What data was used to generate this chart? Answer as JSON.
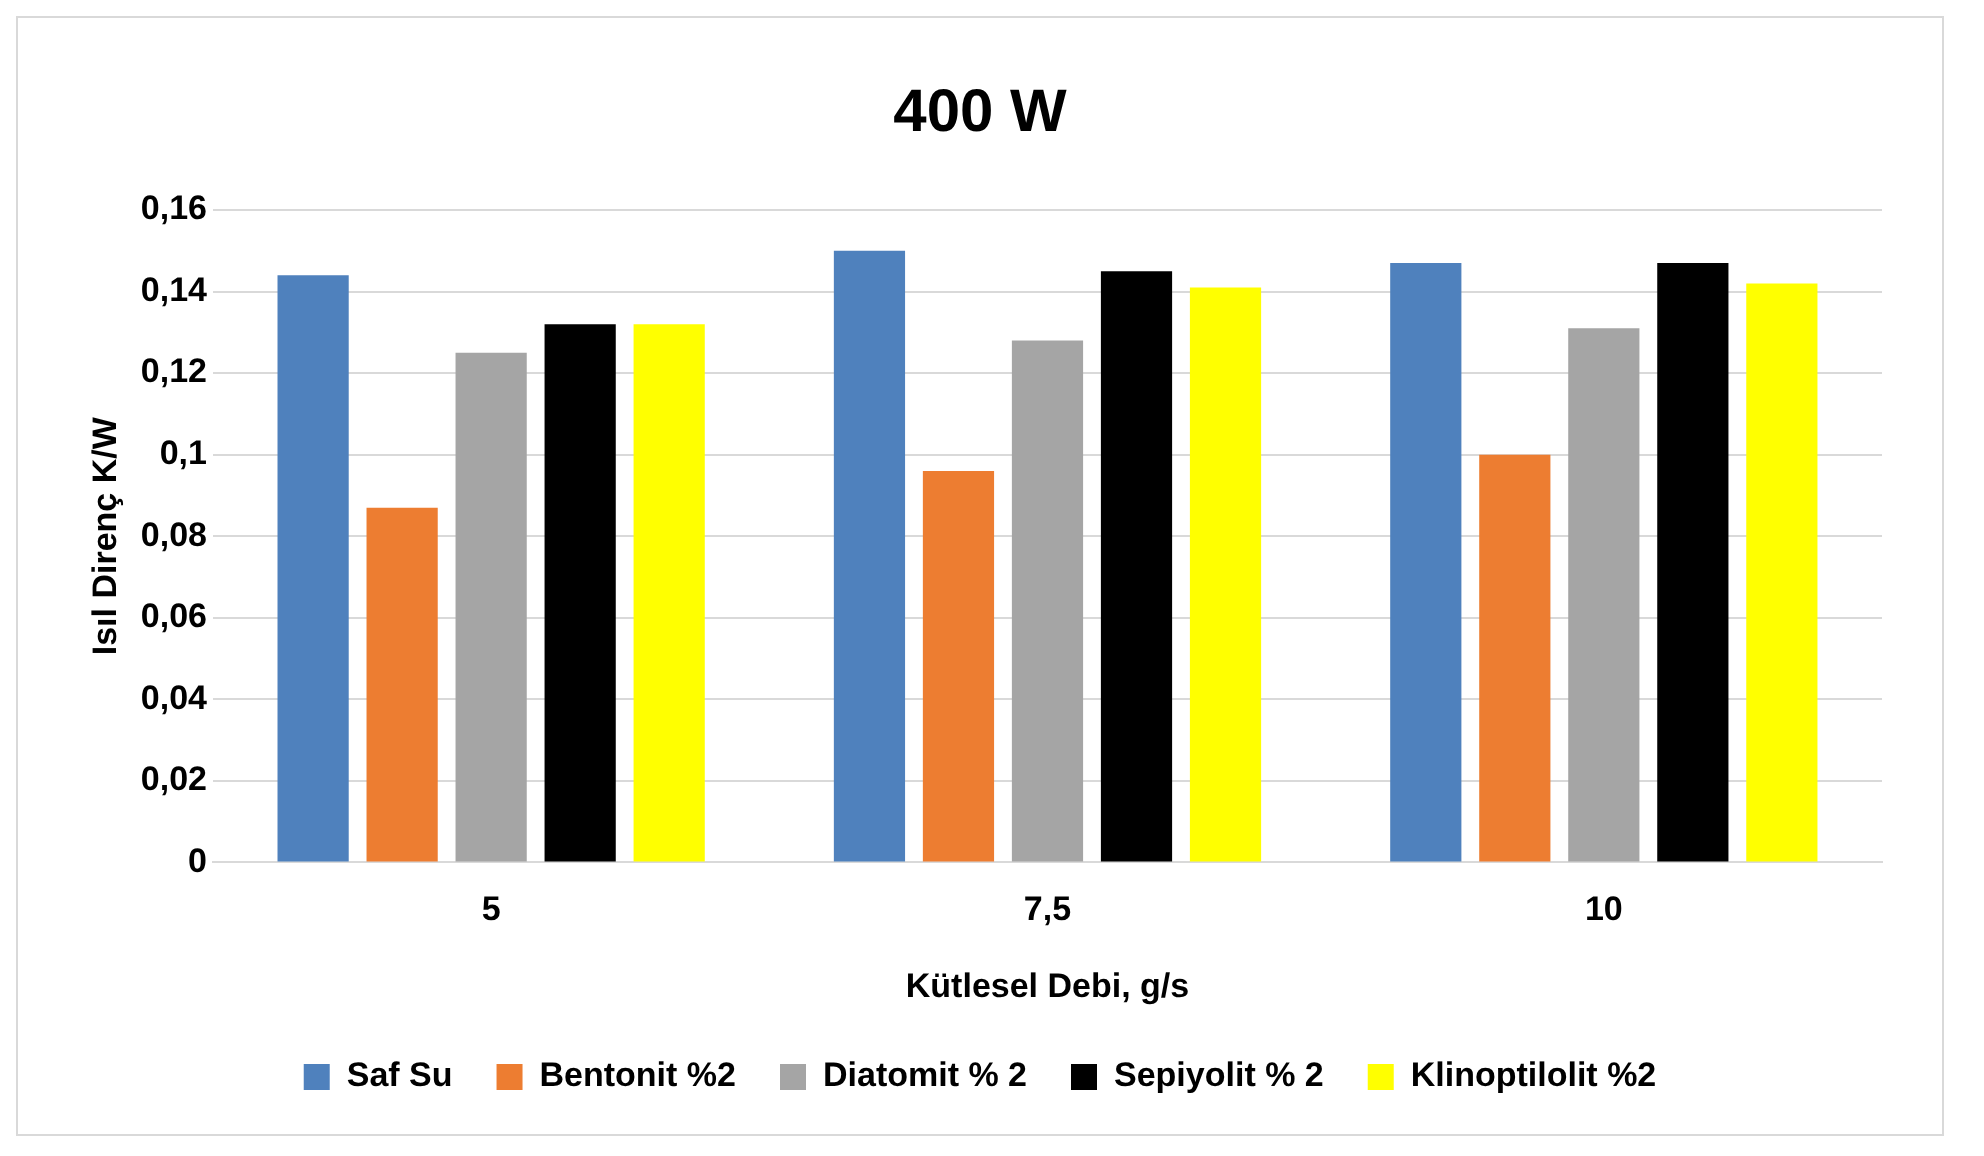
{
  "chart_data": {
    "type": "bar",
    "title": "400 W",
    "xlabel": "Kütlesel Debi, g/s",
    "ylabel": "Isıl Direnç K/W",
    "categories": [
      "5",
      "7,5",
      "10"
    ],
    "series": [
      {
        "name": "Saf Su",
        "color": "#4f81bd",
        "values": [
          0.144,
          0.15,
          0.147
        ]
      },
      {
        "name": "Bentonit %2",
        "color": "#ed7d31",
        "values": [
          0.087,
          0.096,
          0.1
        ]
      },
      {
        "name": "Diatomit % 2",
        "color": "#a5a5a5",
        "values": [
          0.125,
          0.128,
          0.131
        ]
      },
      {
        "name": "Sepiyolit % 2",
        "color": "#000000",
        "values": [
          0.132,
          0.145,
          0.147
        ]
      },
      {
        "name": "Klinoptilolit %2",
        "color": "#ffff00",
        "values": [
          0.132,
          0.141,
          0.142
        ]
      }
    ],
    "ylim": [
      0,
      0.16
    ],
    "yticks": [
      {
        "value": 0,
        "label": "0"
      },
      {
        "value": 0.02,
        "label": "0,02"
      },
      {
        "value": 0.04,
        "label": "0,04"
      },
      {
        "value": 0.06,
        "label": "0,06"
      },
      {
        "value": 0.08,
        "label": "0,08"
      },
      {
        "value": 0.1,
        "label": "0,1"
      },
      {
        "value": 0.12,
        "label": "0,12"
      },
      {
        "value": 0.14,
        "label": "0,14"
      },
      {
        "value": 0.16,
        "label": "0,16"
      }
    ],
    "grid": "y",
    "legend": "bottom"
  }
}
